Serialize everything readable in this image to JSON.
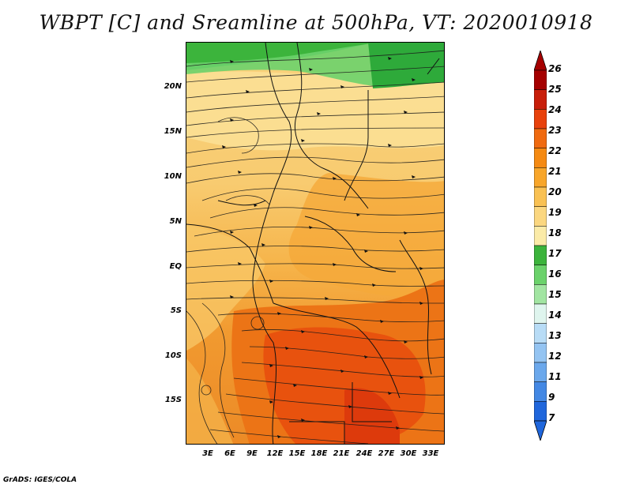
{
  "title": "WBPT [C] and Sreamline at 500hPa, VT: 2020010918",
  "credit": "GrADS: IGES/COLA",
  "map": {
    "y_ticks": [
      "20N",
      "15N",
      "10N",
      "5N",
      "EQ",
      "5S",
      "10S",
      "15S"
    ],
    "x_ticks": [
      "3E",
      "6E",
      "9E",
      "12E",
      "15E",
      "18E",
      "21E",
      "24E",
      "27E",
      "30E",
      "33E"
    ]
  },
  "colorbar": {
    "labels": [
      "26",
      "25",
      "24",
      "23",
      "22",
      "21",
      "20",
      "19",
      "18",
      "17",
      "16",
      "15",
      "14",
      "13",
      "12",
      "11",
      "9",
      "7"
    ],
    "colors": [
      "#a50000",
      "#c81e0a",
      "#e8410c",
      "#f06a10",
      "#f58a12",
      "#f8a62a",
      "#f9c153",
      "#fbd780",
      "#fbeba8",
      "#3cb43c",
      "#6bd26b",
      "#a2e5a2",
      "#dff5ee",
      "#b8dcf6",
      "#94c4f2",
      "#6ba8ec",
      "#4388e4",
      "#1f66dc"
    ]
  }
}
